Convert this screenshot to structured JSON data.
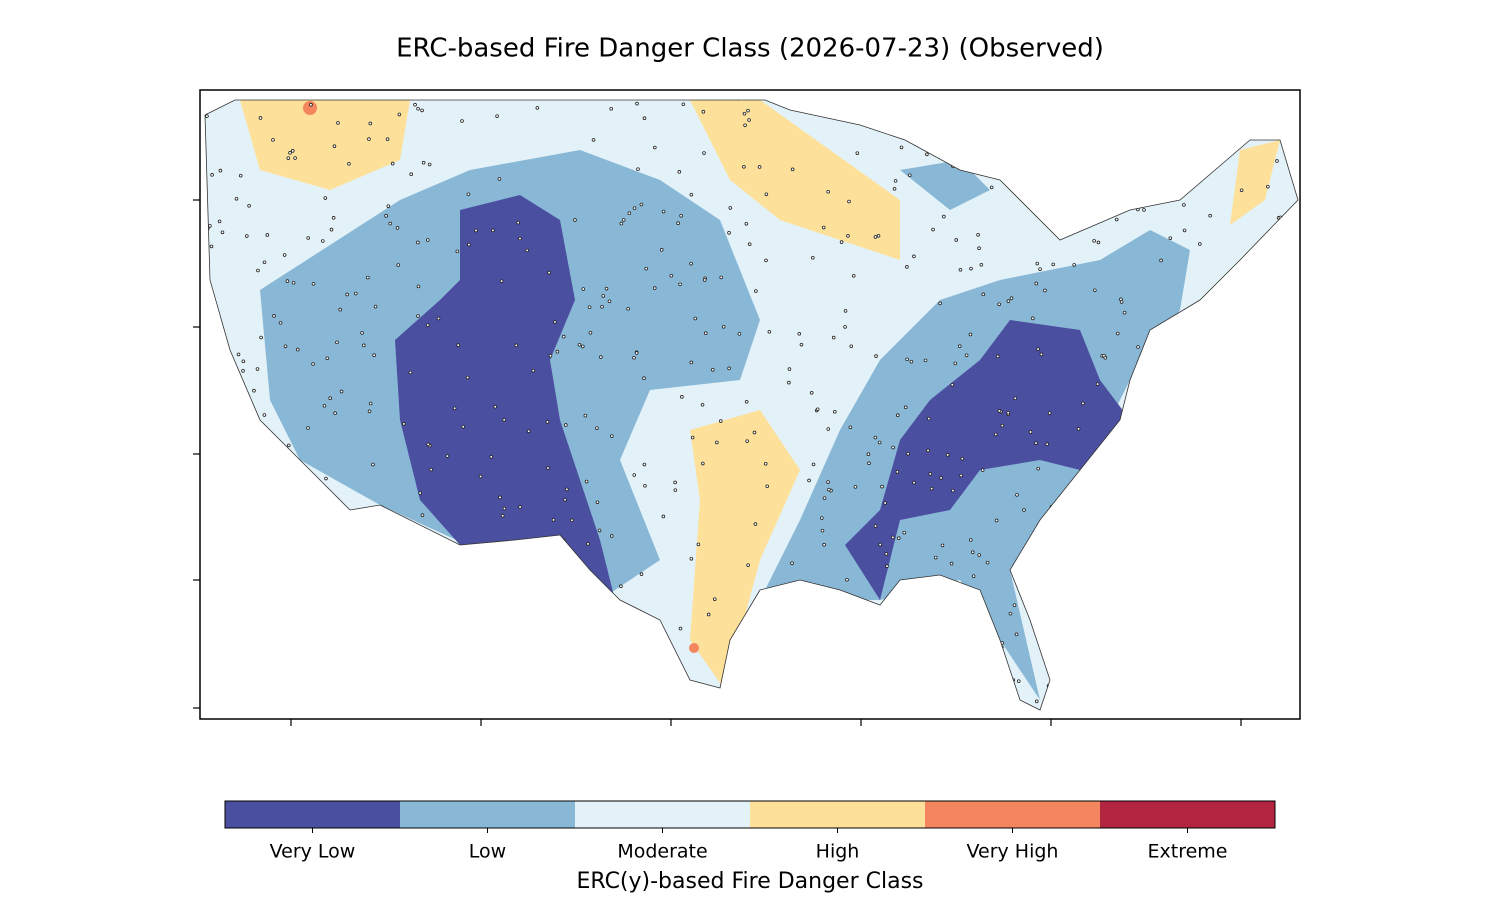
{
  "title": "ERC-based Fire Danger Class (2026-07-23) (Observed)",
  "colorbar": {
    "label": "ERC(y)-based Fire Danger Class",
    "classes": [
      {
        "name": "Very Low",
        "color": "#4b4fa0"
      },
      {
        "name": "Low",
        "color": "#89b8d7"
      },
      {
        "name": "Moderate",
        "color": "#e3f2f8"
      },
      {
        "name": "High",
        "color": "#fde19a"
      },
      {
        "name": "Very High",
        "color": "#f4865f"
      },
      {
        "name": "Extreme",
        "color": "#b2243f"
      }
    ]
  }
}
